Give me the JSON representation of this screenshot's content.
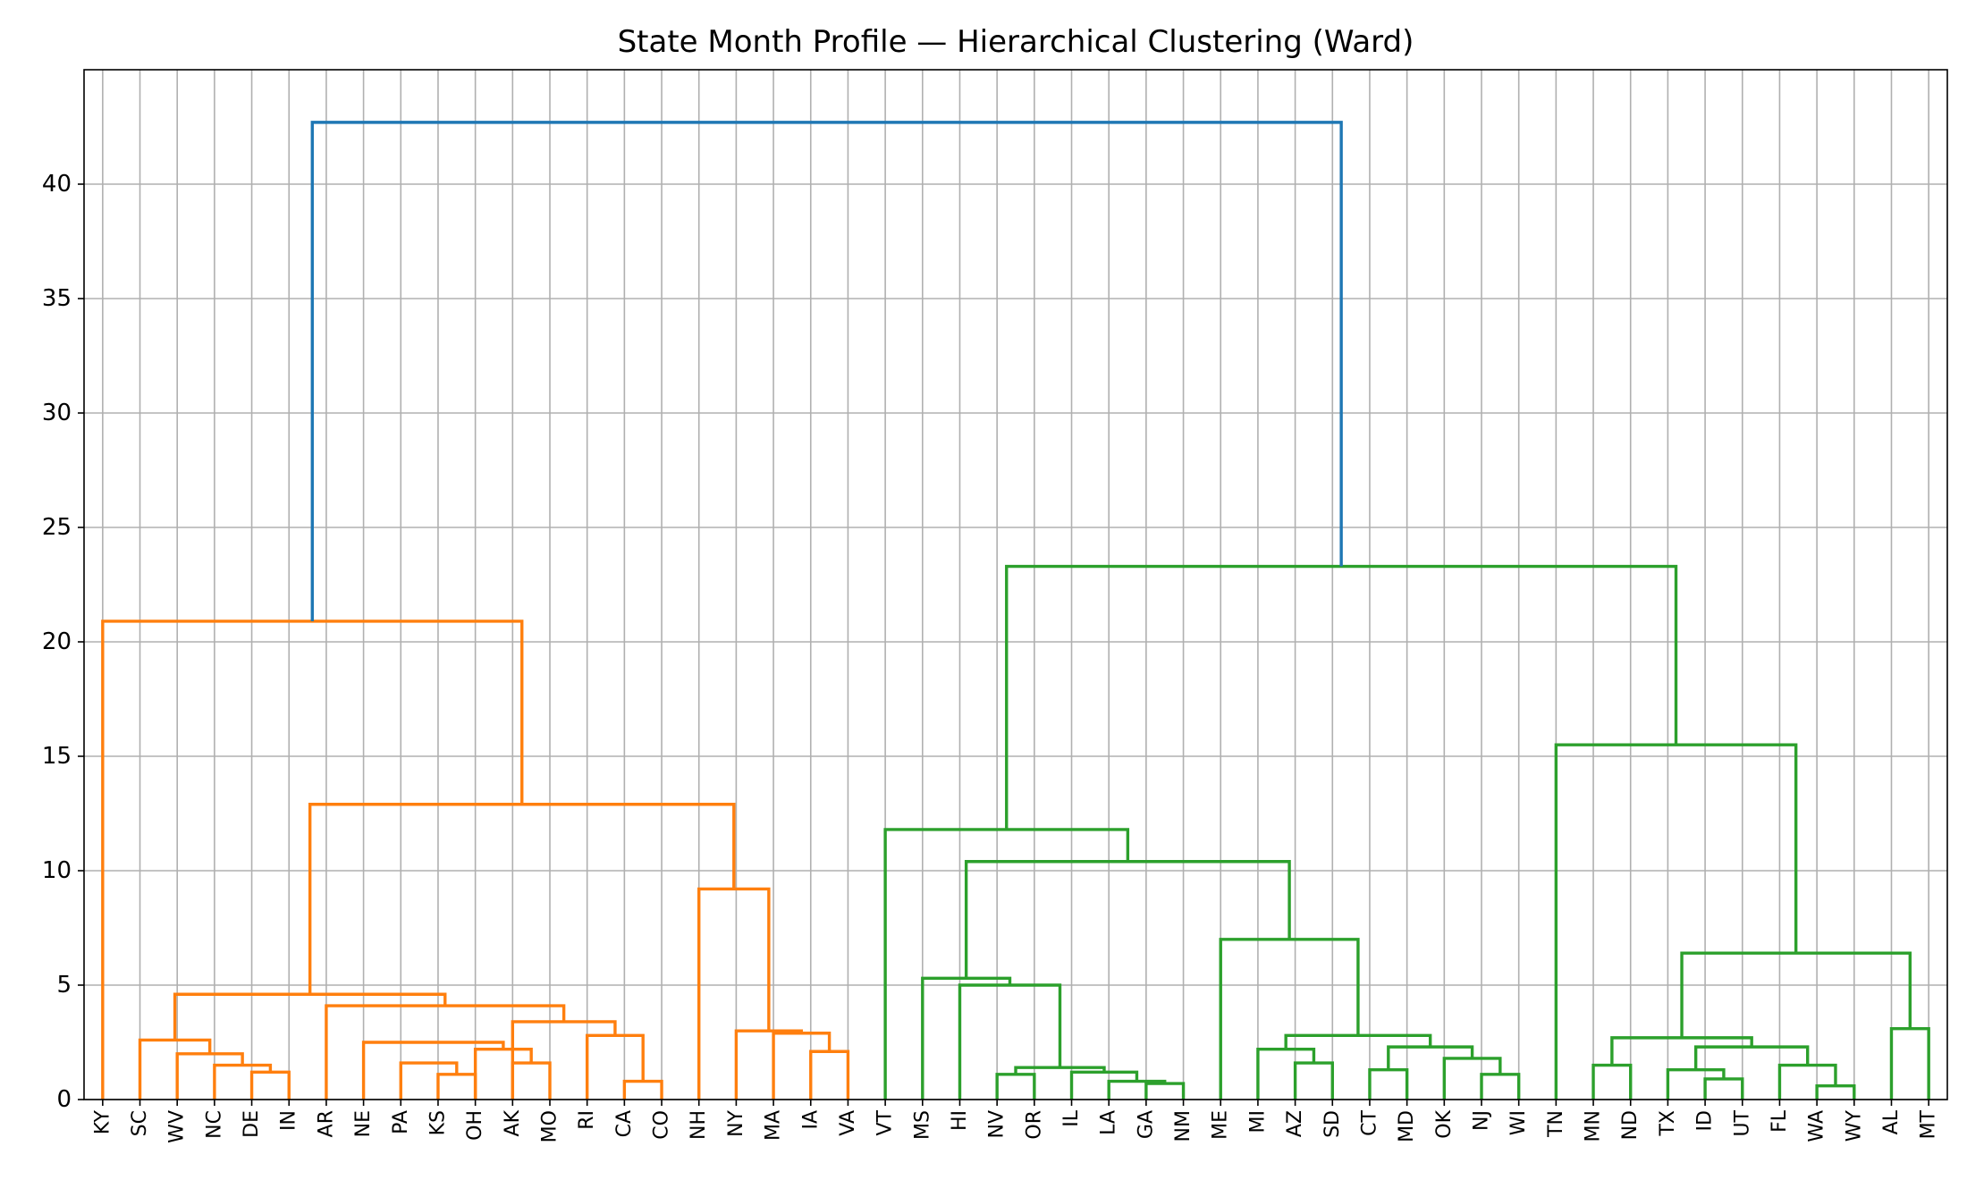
{
  "chart_data": {
    "type": "dendrogram",
    "title": "State Month Profile — Hierarchical Clustering (Ward)",
    "xlabel": "",
    "ylabel": "",
    "ylim": [
      0,
      45
    ],
    "yticks": [
      0,
      5,
      10,
      15,
      20,
      25,
      30,
      35,
      40
    ],
    "grid": true,
    "leaves": [
      "KY",
      "SC",
      "WV",
      "NC",
      "DE",
      "IN",
      "AR",
      "NE",
      "PA",
      "KS",
      "OH",
      "AK",
      "MO",
      "RI",
      "CA",
      "CO",
      "NH",
      "NY",
      "MA",
      "IA",
      "VA",
      "VT",
      "MS",
      "HI",
      "NV",
      "OR",
      "IL",
      "LA",
      "GA",
      "NM",
      "ME",
      "MI",
      "AZ",
      "SD",
      "CT",
      "MD",
      "OK",
      "NJ",
      "WI",
      "TN",
      "MN",
      "ND",
      "TX",
      "ID",
      "UT",
      "FL",
      "WA",
      "WY",
      "AL",
      "MT"
    ],
    "colors": {
      "orange": "#ff7f0e",
      "green": "#2ca02c",
      "blue": "#1f77b4"
    },
    "links": [
      {
        "left": 4,
        "right": 5,
        "height": 1.2,
        "color": "orange"
      },
      {
        "left": 3,
        "right": 4.5,
        "height": 1.5,
        "color": "orange"
      },
      {
        "left": 2,
        "right": 3.75,
        "height": 2.0,
        "color": "orange"
      },
      {
        "left": 1,
        "right": 2.875,
        "height": 2.6,
        "color": "orange"
      },
      {
        "left": 9,
        "right": 10,
        "height": 1.1,
        "color": "orange"
      },
      {
        "left": 8,
        "right": 9.5,
        "height": 1.6,
        "color": "orange"
      },
      {
        "left": 11,
        "right": 12,
        "height": 1.6,
        "color": "orange"
      },
      {
        "left": 10,
        "right": 11.5,
        "height": 2.2,
        "color": "orange"
      },
      {
        "left": 7,
        "right": 10.75,
        "height": 2.5,
        "color": "orange"
      },
      {
        "left": 14,
        "right": 15,
        "height": 0.8,
        "color": "orange"
      },
      {
        "left": 13,
        "right": 14.5,
        "height": 2.8,
        "color": "orange"
      },
      {
        "left": 11,
        "right": 13.75,
        "height": 3.4,
        "color": "orange"
      },
      {
        "left": 6,
        "right": 12.375,
        "height": 4.1,
        "color": "orange"
      },
      {
        "left": 1.9375,
        "right": 9.1875,
        "height": 4.6,
        "color": "orange"
      },
      {
        "left": 19,
        "right": 20,
        "height": 2.1,
        "color": "orange"
      },
      {
        "left": 18,
        "right": 19.5,
        "height": 2.9,
        "color": "orange"
      },
      {
        "left": 17,
        "right": 18.75,
        "height": 3.0,
        "color": "orange"
      },
      {
        "left": 16,
        "right": 17.875,
        "height": 9.2,
        "color": "orange"
      },
      {
        "left": 5.5625,
        "right": 16.9375,
        "height": 12.9,
        "color": "orange"
      },
      {
        "left": 0,
        "right": 11.25,
        "height": 20.9,
        "color": "orange"
      },
      {
        "left": 28,
        "right": 29,
        "height": 0.7,
        "color": "green"
      },
      {
        "left": 27,
        "right": 28.5,
        "height": 0.8,
        "color": "green"
      },
      {
        "left": 26,
        "right": 27.75,
        "height": 1.2,
        "color": "green"
      },
      {
        "left": 24,
        "right": 25,
        "height": 1.1,
        "color": "green"
      },
      {
        "left": 24.5,
        "right": 26.875,
        "height": 1.4,
        "color": "green"
      },
      {
        "left": 23,
        "right": 25.6875,
        "height": 5.0,
        "color": "green"
      },
      {
        "left": 22,
        "right": 24.34375,
        "height": 5.3,
        "color": "green"
      },
      {
        "left": 32,
        "right": 33,
        "height": 1.6,
        "color": "green"
      },
      {
        "left": 31,
        "right": 32.5,
        "height": 2.2,
        "color": "green"
      },
      {
        "left": 37,
        "right": 38,
        "height": 1.1,
        "color": "green"
      },
      {
        "left": 36,
        "right": 37.5,
        "height": 1.8,
        "color": "green"
      },
      {
        "left": 34,
        "right": 35,
        "height": 1.3,
        "color": "green"
      },
      {
        "left": 34.5,
        "right": 36.75,
        "height": 2.3,
        "color": "green"
      },
      {
        "left": 31.75,
        "right": 35.625,
        "height": 2.8,
        "color": "green"
      },
      {
        "left": 30,
        "right": 33.6875,
        "height": 7.0,
        "color": "green"
      },
      {
        "left": 23.171875,
        "right": 31.84375,
        "height": 10.4,
        "color": "green"
      },
      {
        "left": 21,
        "right": 27.5078125,
        "height": 11.8,
        "color": "green"
      },
      {
        "left": 40,
        "right": 41,
        "height": 1.5,
        "color": "green"
      },
      {
        "left": 43,
        "right": 44,
        "height": 0.9,
        "color": "green"
      },
      {
        "left": 42,
        "right": 43.5,
        "height": 1.3,
        "color": "green"
      },
      {
        "left": 46,
        "right": 47,
        "height": 0.6,
        "color": "green"
      },
      {
        "left": 45,
        "right": 46.5,
        "height": 1.5,
        "color": "green"
      },
      {
        "left": 42.75,
        "right": 45.75,
        "height": 2.3,
        "color": "green"
      },
      {
        "left": 40.5,
        "right": 44.25,
        "height": 2.7,
        "color": "green"
      },
      {
        "left": 48,
        "right": 49,
        "height": 3.1,
        "color": "green"
      },
      {
        "left": 42.375,
        "right": 48.5,
        "height": 6.4,
        "color": "green"
      },
      {
        "left": 39,
        "right": 45.4375,
        "height": 15.5,
        "color": "green"
      },
      {
        "left": 24.25390625,
        "right": 42.21875,
        "height": 23.3,
        "color": "green"
      },
      {
        "left": 5.625,
        "right": 33.236328125,
        "height": 42.7,
        "color": "blue"
      }
    ]
  }
}
